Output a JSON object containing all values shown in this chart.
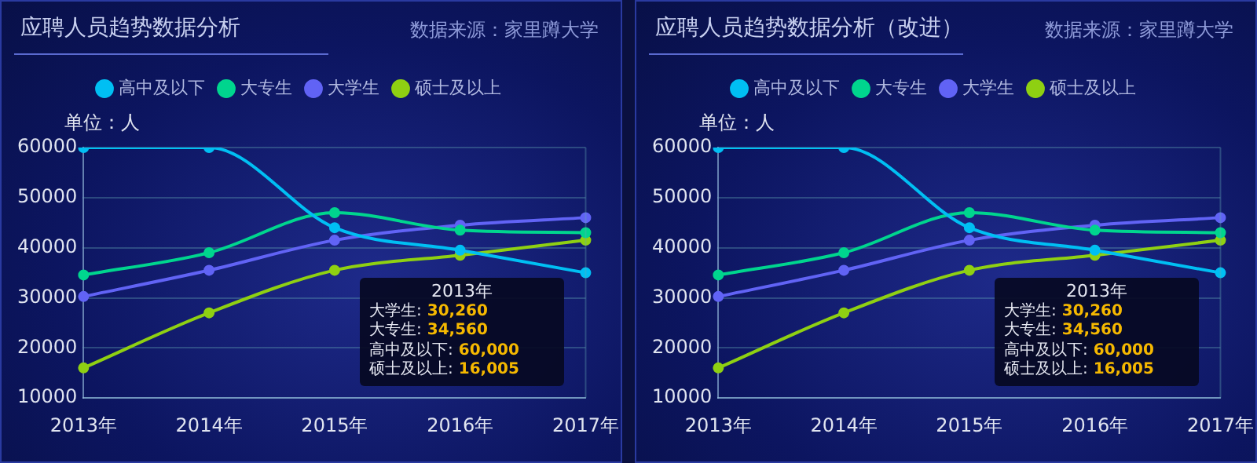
{
  "chart_data": [
    {
      "type": "line",
      "title": "应聘人员趋势数据分析",
      "ylabel": "单位：人",
      "annotations": [
        "数据来源：家里蹲大学",
        "2013年",
        "大学生: 30,260",
        "大专生: 34,560",
        "高中及以下: 60,000",
        "硕士及以上: 16,005"
      ],
      "categories": [
        "2013年",
        "2014年",
        "2015年",
        "2016年",
        "2017年"
      ],
      "series": [
        {
          "name": "高中及以下",
          "color": "#00bff3",
          "values": [
            60000,
            60000,
            44000,
            39500,
            35000
          ]
        },
        {
          "name": "大专生",
          "color": "#00d58e",
          "values": [
            34560,
            39000,
            47000,
            43500,
            43000
          ]
        },
        {
          "name": "大学生",
          "color": "#6163f5",
          "values": [
            30260,
            35500,
            41500,
            44500,
            46000
          ]
        },
        {
          "name": "硕士及以上",
          "color": "#8fd012",
          "values": [
            16005,
            27000,
            35500,
            38500,
            41500
          ]
        }
      ],
      "ylim": [
        10000,
        60000
      ],
      "yticks": [
        10000,
        20000,
        30000,
        40000,
        50000,
        60000
      ],
      "grid": "y",
      "legend": "top",
      "marker": "circle",
      "line_style": "solid"
    },
    {
      "type": "line",
      "title": "应聘人员趋势数据分析（改进）",
      "ylabel": "单位：人",
      "annotations": [
        "数据来源：家里蹲大学",
        "2013年",
        "大学生: 30,260",
        "大专生: 34,560",
        "高中及以下: 60,000",
        "硕士及以上: 16,005"
      ],
      "categories": [
        "2013年",
        "2014年",
        "2015年",
        "2016年",
        "2017年"
      ],
      "series": [
        {
          "name": "高中及以下",
          "color": "#00bff3",
          "values": [
            60000,
            60000,
            44000,
            39500,
            35000
          ]
        },
        {
          "name": "大专生",
          "color": "#00d58e",
          "values": [
            34560,
            39000,
            47000,
            43500,
            43000
          ]
        },
        {
          "name": "大学生",
          "color": "#6163f5",
          "values": [
            30260,
            35500,
            41500,
            44500,
            46000
          ]
        },
        {
          "name": "硕士及以上",
          "color": "#8fd012",
          "values": [
            16005,
            27000,
            35500,
            38500,
            41500
          ]
        }
      ],
      "ylim": [
        10000,
        60000
      ],
      "yticks": [
        10000,
        20000,
        30000,
        40000,
        50000,
        60000
      ],
      "grid": "y",
      "legend": "top",
      "marker": "circle",
      "line_style": "solid"
    }
  ]
}
